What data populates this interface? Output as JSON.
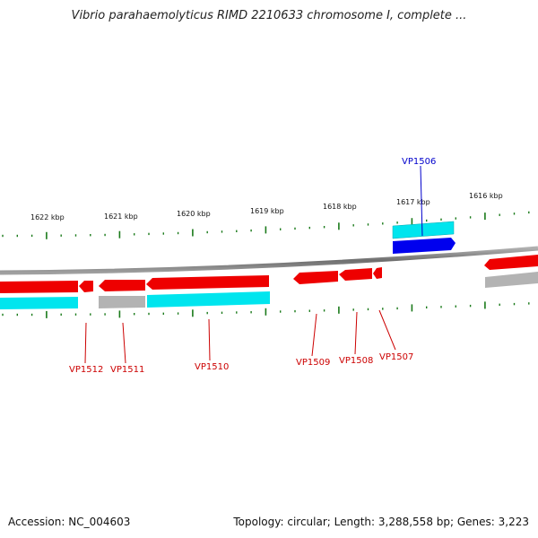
{
  "title": "Vibrio parahaemolyticus RIMD 2210633 chromosome I, complete ...",
  "footer": {
    "accession": "Accession: NC_004603",
    "summary": "Topology: circular; Length: 3,288,558 bp; Genes: 3,223"
  },
  "colors": {
    "gene_red": "#ee0000",
    "cds_cyan": "#00e5ee",
    "highlight_blue": "#0000ee",
    "pseudo_gray": "#b3b3b3",
    "tick_green": "#1a7a1a",
    "backbone": "#7a7a7a",
    "label_red": "#cc0000",
    "label_blue": "#0000cc"
  },
  "scale_labels": [
    "1622 kbp",
    "1621 kbp",
    "1620 kbp",
    "1619 kbp",
    "1618 kbp",
    "1617 kbp",
    "1616 kbp"
  ],
  "gene_labels": {
    "VP1506": "VP1506",
    "VP1507": "VP1507",
    "VP1508": "VP1508",
    "VP1509": "VP1509",
    "VP1510": "VP1510",
    "VP1511": "VP1511",
    "VP1512": "VP1512"
  }
}
